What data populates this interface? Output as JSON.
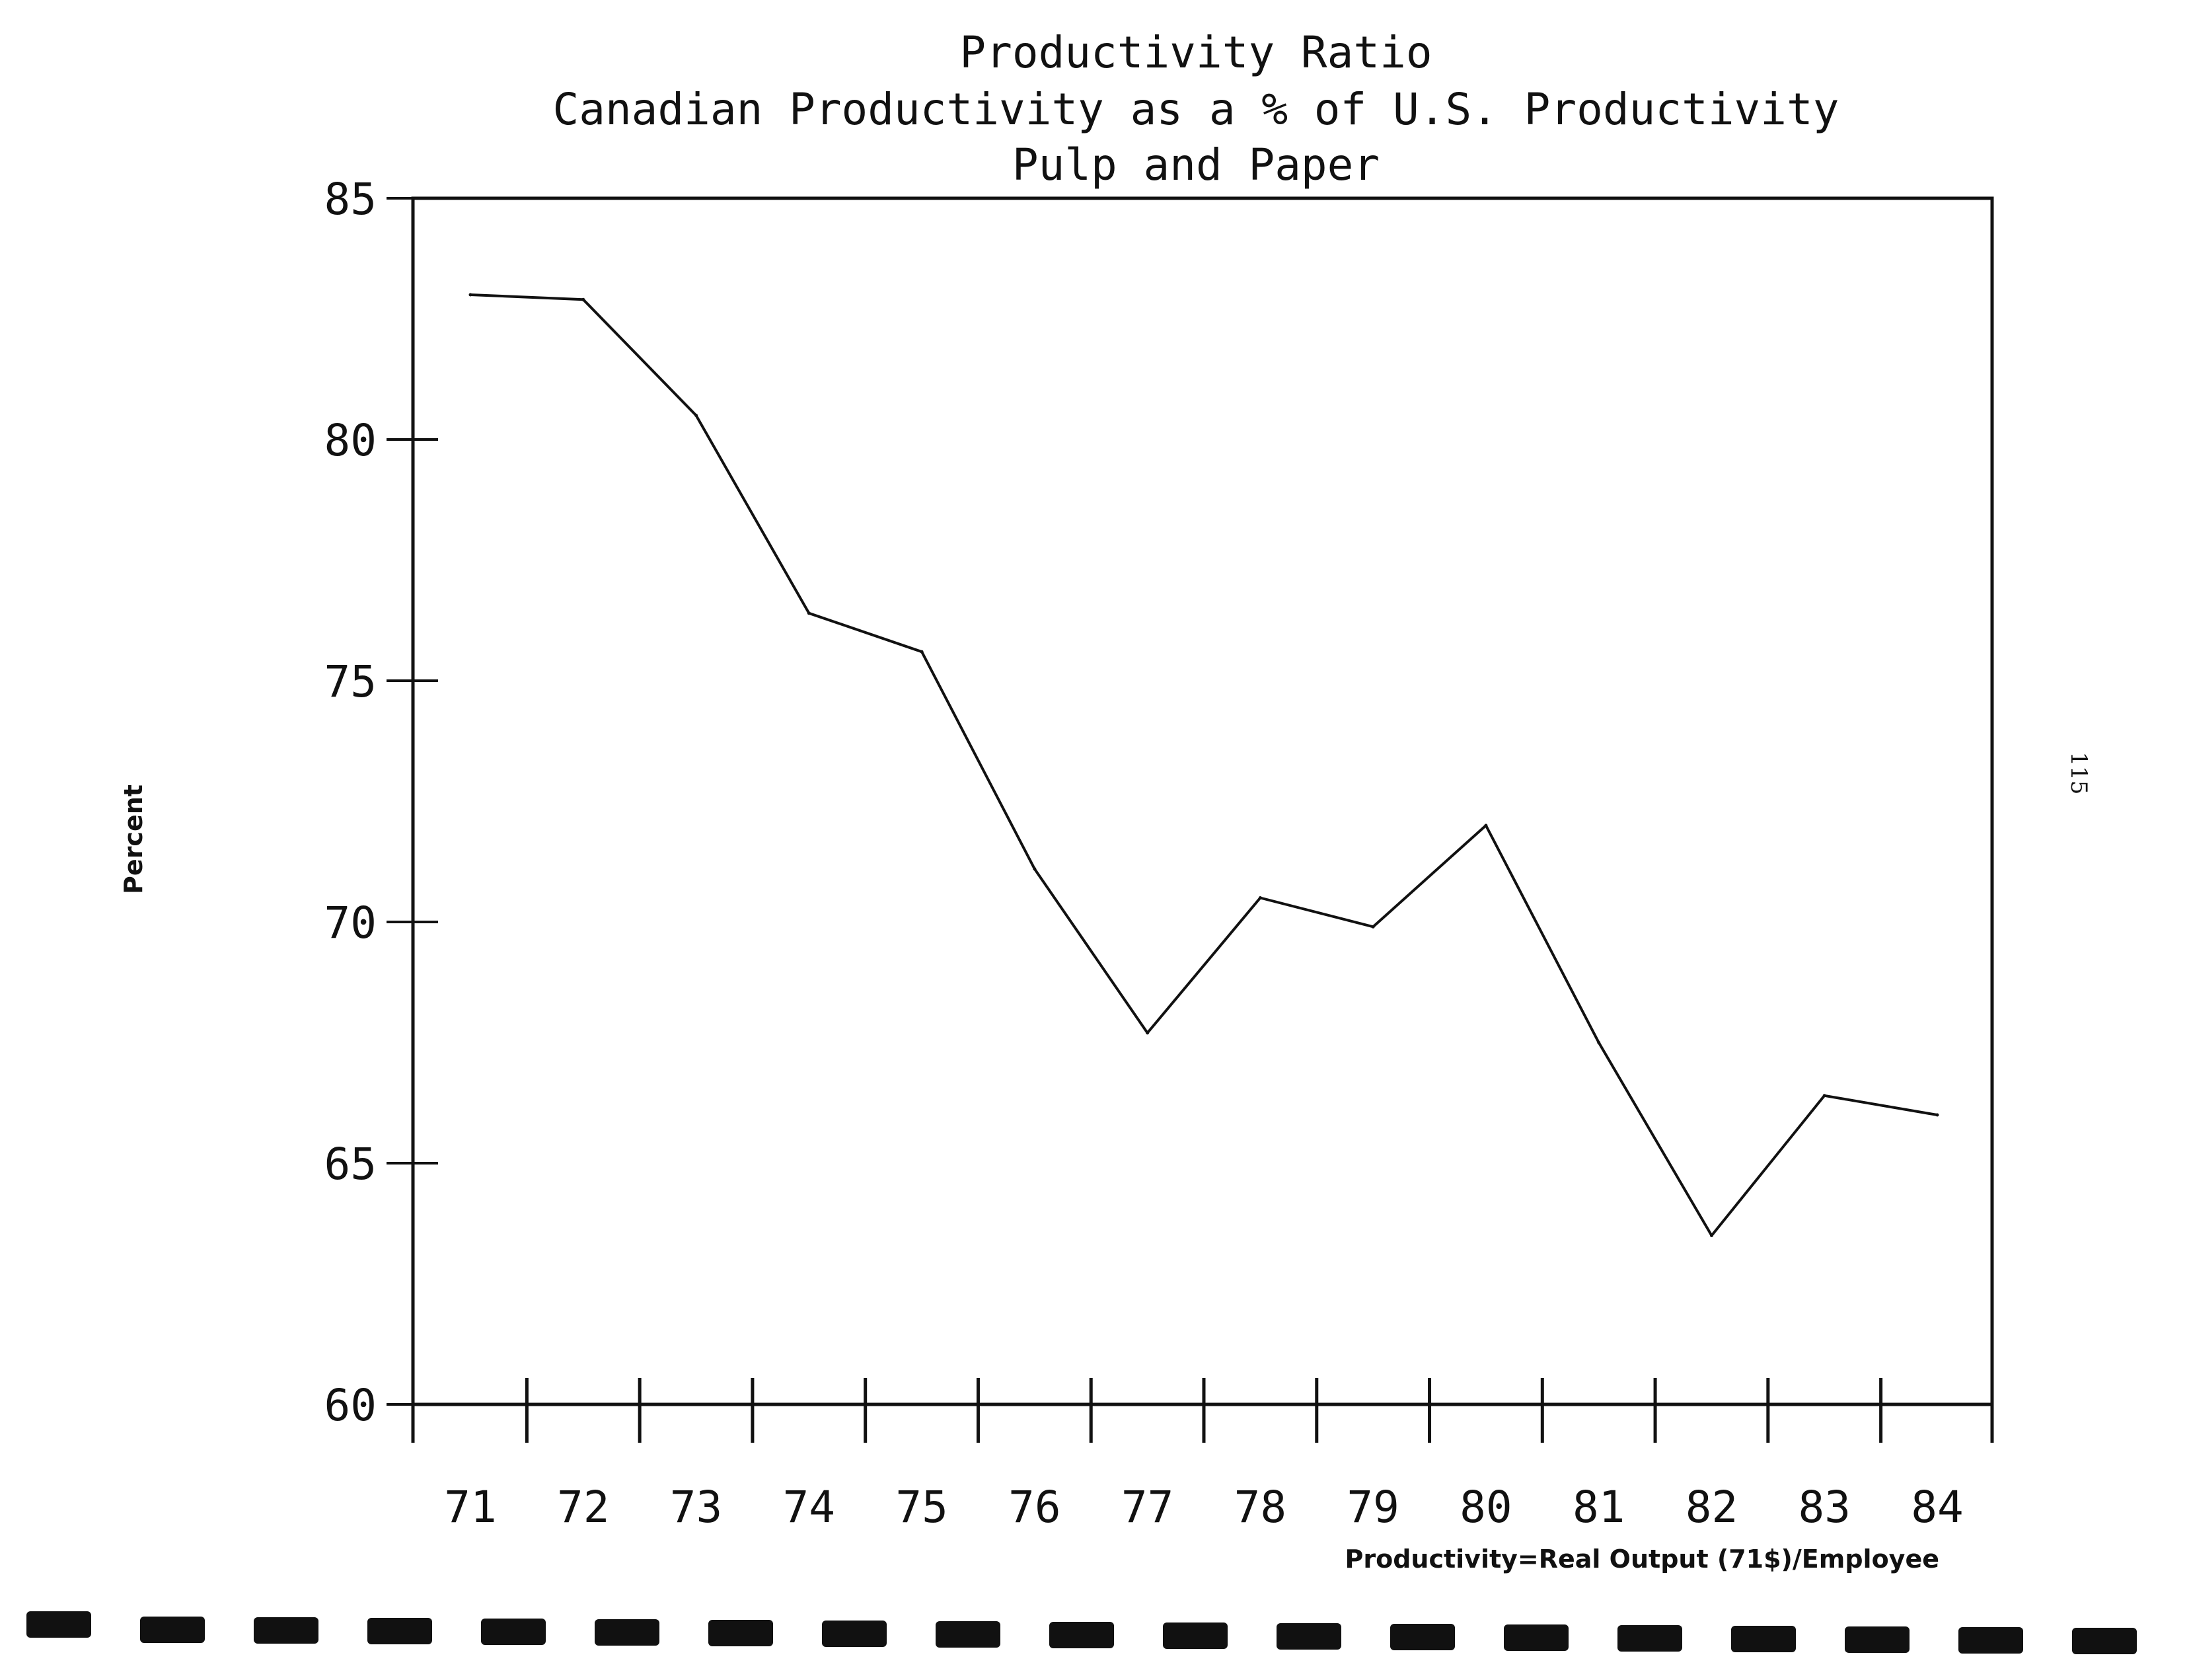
{
  "page": {
    "side_number": "115",
    "colors": {
      "ink": "#111111",
      "background": "#ffffff"
    }
  },
  "chart_data": {
    "type": "line",
    "title": "Productivity Ratio",
    "subtitle": "Canadian Productivity as a % of U.S. Productivity",
    "subtitle2": "Pulp and Paper",
    "ylabel": "Percent",
    "xlabel": "",
    "note": "Productivity=Real Output (71$)/Employee",
    "ylim": [
      60,
      85
    ],
    "yticks": [
      60,
      65,
      70,
      75,
      80,
      85
    ],
    "categories": [
      "71",
      "72",
      "73",
      "74",
      "75",
      "76",
      "77",
      "78",
      "79",
      "80",
      "81",
      "82",
      "83",
      "84"
    ],
    "values": [
      83.0,
      82.9,
      80.5,
      76.4,
      75.6,
      71.1,
      67.7,
      70.5,
      69.9,
      72.0,
      67.5,
      63.5,
      66.4,
      66.0
    ],
    "grid": false,
    "legend": "none"
  }
}
